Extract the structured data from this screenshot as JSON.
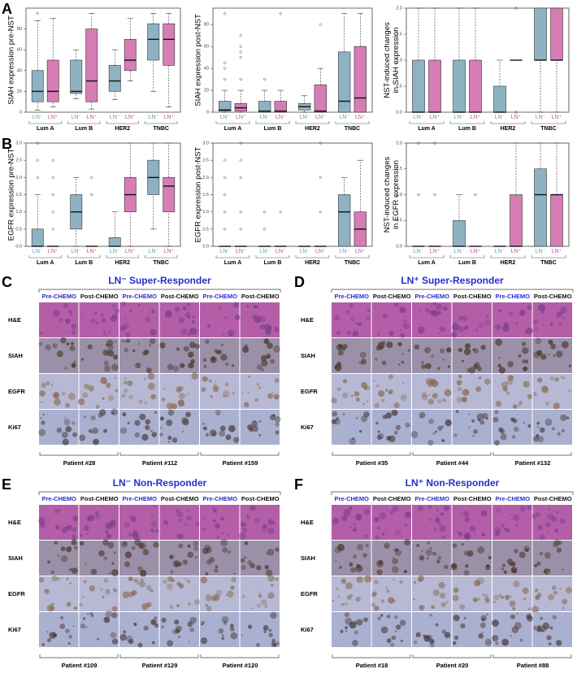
{
  "chart_data": [
    {
      "type": "box",
      "panel": "A",
      "ylabel": [
        "SIAH expression pre-NST"
      ],
      "categories": [
        "Lum A",
        "Lum B",
        "HER2",
        "TNBC"
      ],
      "ylim": [
        0,
        100
      ],
      "yticks": [
        0,
        20,
        40,
        60,
        80
      ],
      "series": [
        {
          "name": "LN⁻",
          "color": "#8fb2c3",
          "label_color": "#5f9db8",
          "boxes": [
            {
              "whislo": 2,
              "q1": 10,
              "med": 20,
              "q3": 40,
              "whishi": 88,
              "fliers": [
                95
              ]
            },
            {
              "whislo": 13,
              "q1": 18,
              "med": 20,
              "q3": 50,
              "whishi": 60,
              "fliers": []
            },
            {
              "whislo": 12,
              "q1": 20,
              "med": 30,
              "q3": 45,
              "whishi": 60,
              "fliers": []
            },
            {
              "whislo": 20,
              "q1": 50,
              "med": 70,
              "q3": 85,
              "whishi": 95,
              "fliers": []
            }
          ]
        },
        {
          "name": "LN⁺",
          "color": "#d67db5",
          "label_color": "#c04f9c",
          "boxes": [
            {
              "whislo": 5,
              "q1": 10,
              "med": 20,
              "q3": 50,
              "whishi": 90,
              "fliers": []
            },
            {
              "whislo": 3,
              "q1": 10,
              "med": 30,
              "q3": 80,
              "whishi": 95,
              "fliers": []
            },
            {
              "whislo": 30,
              "q1": 40,
              "med": 50,
              "q3": 70,
              "whishi": 90,
              "fliers": []
            },
            {
              "whislo": 5,
              "q1": 45,
              "med": 70,
              "q3": 85,
              "whishi": 95,
              "fliers": []
            }
          ]
        }
      ]
    },
    {
      "type": "box",
      "ylabel": [
        "SIAH expression post-NST"
      ],
      "categories": [
        "Lum A",
        "Lum B",
        "HER2",
        "TNBC"
      ],
      "ylim": [
        0,
        95
      ],
      "yticks": [
        0,
        20,
        40,
        60,
        80
      ],
      "series": [
        {
          "name": "LN⁻",
          "color": "#8fb2c3",
          "label_color": "#5f9db8",
          "boxes": [
            {
              "whislo": 0,
              "q1": 1,
              "med": 2,
              "q3": 10,
              "whishi": 20,
              "fliers": [
                30,
                40,
                45,
                90
              ]
            },
            {
              "whislo": 0,
              "q1": 0,
              "med": 1,
              "q3": 10,
              "whishi": 20,
              "fliers": [
                30
              ]
            },
            {
              "whislo": 0,
              "q1": 2,
              "med": 5,
              "q3": 8,
              "whishi": 15,
              "fliers": []
            },
            {
              "whislo": 0,
              "q1": 0,
              "med": 10,
              "q3": 55,
              "whishi": 90,
              "fliers": []
            }
          ]
        },
        {
          "name": "LN⁺",
          "color": "#d67db5",
          "label_color": "#c04f9c",
          "boxes": [
            {
              "whislo": 0,
              "q1": 1,
              "med": 4,
              "q3": 8,
              "whishi": 20,
              "fliers": [
                30,
                50,
                55,
                60,
                70
              ]
            },
            {
              "whislo": 0,
              "q1": 0,
              "med": 1,
              "q3": 10,
              "whishi": 20,
              "fliers": [
                90
              ]
            },
            {
              "whislo": 0,
              "q1": 0,
              "med": 1,
              "q3": 25,
              "whishi": 40,
              "fliers": [
                80
              ]
            },
            {
              "whislo": 0,
              "q1": 0,
              "med": 13,
              "q3": 60,
              "whishi": 90,
              "fliers": []
            }
          ]
        }
      ]
    },
    {
      "type": "box",
      "ylabel": [
        "NST-induced changes",
        "in SIAH expression"
      ],
      "categories": [
        "Lum A",
        "Lum B",
        "HER2",
        "TNBC"
      ],
      "ylim": [
        0,
        2
      ],
      "yticks": [
        {
          "value": 0,
          "label": "0.0"
        },
        0.5,
        {
          "value": 1,
          "label": "1.0"
        },
        1.5,
        {
          "value": 2,
          "label": "2.0"
        }
      ],
      "series": [
        {
          "name": "LN⁻",
          "color": "#8fb2c3",
          "label_color": "#5f9db8",
          "boxes": [
            {
              "whislo": 0,
              "q1": 0,
              "med": 0,
              "q3": 1,
              "whishi": 2,
              "fliers": []
            },
            {
              "whislo": 0,
              "q1": 0,
              "med": 0,
              "q3": 1,
              "whishi": 2,
              "fliers": []
            },
            {
              "whislo": 0,
              "q1": 0,
              "med": 0,
              "q3": 0.5,
              "whishi": 1,
              "fliers": []
            },
            {
              "whislo": 0,
              "q1": 1,
              "med": 1,
              "q3": 2,
              "whishi": 2,
              "fliers": []
            }
          ]
        },
        {
          "name": "LN⁺",
          "color": "#d67db5",
          "label_color": "#c04f9c",
          "boxes": [
            {
              "whislo": 0,
              "q1": 0,
              "med": 0,
              "q3": 1,
              "whishi": 2,
              "fliers": []
            },
            {
              "whislo": 0,
              "q1": 0,
              "med": 0,
              "q3": 1,
              "whishi": 2,
              "fliers": []
            },
            {
              "whislo": 1,
              "q1": 1,
              "med": 1,
              "q3": 1,
              "whishi": 1,
              "fliers": [
                0,
                2
              ]
            },
            {
              "whislo": 0,
              "q1": 1,
              "med": 1,
              "q3": 2,
              "whishi": 2,
              "fliers": []
            }
          ]
        }
      ]
    },
    {
      "type": "box",
      "panel": "B",
      "ylabel": [
        "EGFR expression pre-NST"
      ],
      "categories": [
        "Lum A",
        "Lum B",
        "HER2",
        "TNBC"
      ],
      "ylim": [
        0,
        3
      ],
      "yticks": [
        {
          "value": 0,
          "label": "0.0"
        },
        0.5,
        {
          "value": 1,
          "label": "1.0"
        },
        1.5,
        {
          "value": 2,
          "label": "2.0"
        },
        2.5,
        {
          "value": 3,
          "label": "3.0"
        }
      ],
      "series": [
        {
          "name": "LN⁻",
          "color": "#8fb2c3",
          "label_color": "#5f9db8",
          "boxes": [
            {
              "whislo": 0,
              "q1": 0,
              "med": 0,
              "q3": 0.5,
              "whishi": 1.5,
              "fliers": [
                2,
                2.5,
                3
              ]
            },
            {
              "whislo": 0,
              "q1": 0.5,
              "med": 1,
              "q3": 1.5,
              "whishi": 2,
              "fliers": []
            },
            {
              "whislo": 0,
              "q1": 0,
              "med": 0,
              "q3": 0.25,
              "whishi": 1,
              "fliers": []
            },
            {
              "whislo": 0.5,
              "q1": 1.5,
              "med": 2,
              "q3": 2.5,
              "whishi": 3,
              "fliers": []
            }
          ]
        },
        {
          "name": "LN⁺",
          "color": "#d67db5",
          "label_color": "#c04f9c",
          "boxes": [
            {
              "whislo": 0,
              "q1": 0,
              "med": 0,
              "q3": 0,
              "whishi": 0,
              "fliers": [
                0.5,
                1,
                1.5,
                2,
                2.5
              ]
            },
            {
              "whislo": 0,
              "q1": 0,
              "med": 0,
              "q3": 0,
              "whishi": 0,
              "fliers": [
                1.5,
                2
              ]
            },
            {
              "whislo": 0,
              "q1": 1,
              "med": 1.5,
              "q3": 2,
              "whishi": 3,
              "fliers": []
            },
            {
              "whislo": 0,
              "q1": 1,
              "med": 1.75,
              "q3": 2,
              "whishi": 3,
              "fliers": []
            }
          ]
        }
      ]
    },
    {
      "type": "box",
      "ylabel": [
        "EGFR expression post-NST"
      ],
      "categories": [
        "Lum A",
        "Lum B",
        "HER2",
        "TNBC"
      ],
      "ylim": [
        0,
        3
      ],
      "yticks": [
        {
          "value": 0,
          "label": "0.0"
        },
        0.5,
        {
          "value": 1,
          "label": "1.0"
        },
        1.5,
        {
          "value": 2,
          "label": "2.0"
        },
        2.5,
        {
          "value": 3,
          "label": "3.0"
        }
      ],
      "series": [
        {
          "name": "LN⁻",
          "color": "#8fb2c3",
          "label_color": "#5f9db8",
          "boxes": [
            {
              "whislo": 0,
              "q1": 0,
              "med": 0,
              "q3": 0,
              "whishi": 0,
              "fliers": [
                0.5,
                1,
                1.5,
                2,
                2.5
              ]
            },
            {
              "whislo": 0,
              "q1": 0,
              "med": 0,
              "q3": 0,
              "whishi": 0,
              "fliers": [
                0.5,
                1
              ]
            },
            {
              "whislo": 0,
              "q1": 0,
              "med": 0,
              "q3": 0,
              "whishi": 0,
              "fliers": []
            },
            {
              "whislo": 0,
              "q1": 0,
              "med": 1,
              "q3": 1.5,
              "whishi": 2,
              "fliers": []
            }
          ]
        },
        {
          "name": "LN⁺",
          "color": "#d67db5",
          "label_color": "#c04f9c",
          "boxes": [
            {
              "whislo": 0,
              "q1": 0,
              "med": 0,
              "q3": 0,
              "whishi": 0,
              "fliers": [
                0.5,
                1,
                2,
                2.5,
                3
              ]
            },
            {
              "whislo": 0,
              "q1": 0,
              "med": 0,
              "q3": 0,
              "whishi": 0,
              "fliers": [
                1
              ]
            },
            {
              "whislo": 0,
              "q1": 0,
              "med": 0,
              "q3": 0,
              "whishi": 0,
              "fliers": [
                1,
                2,
                3
              ]
            },
            {
              "whislo": 0,
              "q1": 0,
              "med": 0.5,
              "q3": 1,
              "whishi": 2.5,
              "fliers": []
            }
          ]
        }
      ]
    },
    {
      "type": "box",
      "ylabel": [
        "NST-induced changes",
        "in EGFR expression"
      ],
      "categories": [
        "Lum A",
        "Lum B",
        "HER2",
        "TNBC"
      ],
      "ylim": [
        0,
        2
      ],
      "yticks": [
        {
          "value": 0,
          "label": "0.0"
        },
        0.5,
        {
          "value": 1,
          "label": "1.0"
        },
        1.5,
        {
          "value": 2,
          "label": "2.0"
        }
      ],
      "series": [
        {
          "name": "LN⁻",
          "color": "#8fb2c3",
          "label_color": "#5f9db8",
          "boxes": [
            {
              "whislo": 0,
              "q1": 0,
              "med": 0,
              "q3": 0,
              "whishi": 0,
              "fliers": [
                1,
                2
              ]
            },
            {
              "whislo": 0,
              "q1": 0,
              "med": 0,
              "q3": 0.5,
              "whishi": 1,
              "fliers": []
            },
            {
              "whislo": 0,
              "q1": 0,
              "med": 0,
              "q3": 0,
              "whishi": 0,
              "fliers": []
            },
            {
              "whislo": 0,
              "q1": 0,
              "med": 1,
              "q3": 1.5,
              "whishi": 2,
              "fliers": []
            }
          ]
        },
        {
          "name": "LN⁺",
          "color": "#d67db5",
          "label_color": "#c04f9c",
          "boxes": [
            {
              "whislo": 0,
              "q1": 0,
              "med": 0,
              "q3": 0,
              "whishi": 0,
              "fliers": [
                1,
                2
              ]
            },
            {
              "whislo": 0,
              "q1": 0,
              "med": 0,
              "q3": 0,
              "whishi": 0,
              "fliers": [
                1
              ]
            },
            {
              "whislo": 0,
              "q1": 0,
              "med": 0,
              "q3": 1,
              "whishi": 2,
              "fliers": []
            },
            {
              "whislo": 0,
              "q1": 0,
              "med": 1,
              "q3": 1,
              "whishi": 2,
              "fliers": []
            }
          ]
        }
      ]
    }
  ],
  "image_panels": [
    {
      "letter": "C",
      "title": "LN⁻ Super-Responder",
      "columns": [
        "Pre-CHEMO",
        "Post-CHEMO",
        "Pre-CHEMO",
        "Post-CHEMO",
        "Pre-CHEMO",
        "Post-CHEMO"
      ],
      "rows": [
        "H&E",
        "SIAH",
        "EGFR",
        "Ki67"
      ],
      "patients": [
        "Patient #28",
        "Patient #112",
        "Patient #159"
      ]
    },
    {
      "letter": "D",
      "title": "LN⁺ Super-Responder",
      "columns": [
        "Pre-CHEMO",
        "Post-CHEMO",
        "Pre-CHEMO",
        "Post-CHEMO",
        "Pre-CHEMO",
        "Post-CHEMO"
      ],
      "rows": [
        "H&E",
        "SIAH",
        "EGFR",
        "Ki67"
      ],
      "patients": [
        "Patient #35",
        "Patient #44",
        "Patient #132"
      ]
    },
    {
      "letter": "E",
      "title": "LN⁻ Non-Responder",
      "columns": [
        "Pre-CHEMO",
        "Post-CHEMO",
        "Pre-CHEMO",
        "Post-CHEMO",
        "Pre-CHEMO",
        "Post-CHEMO"
      ],
      "rows": [
        "H&E",
        "SIAH",
        "EGFR",
        "Ki67"
      ],
      "patients": [
        "Patient #109",
        "Patient #129",
        "Patient #120"
      ]
    },
    {
      "letter": "F",
      "title": "LN⁺ Non-Responder",
      "columns": [
        "Pre-CHEMO",
        "Post-CHEMO",
        "Pre-CHEMO",
        "Post-CHEMO",
        "Pre-CHEMO",
        "Post-CHEMO"
      ],
      "rows": [
        "H&E",
        "SIAH",
        "EGFR",
        "Ki67"
      ],
      "patients": [
        "Patient #18",
        "Patient #20",
        "Patient #88"
      ]
    }
  ]
}
